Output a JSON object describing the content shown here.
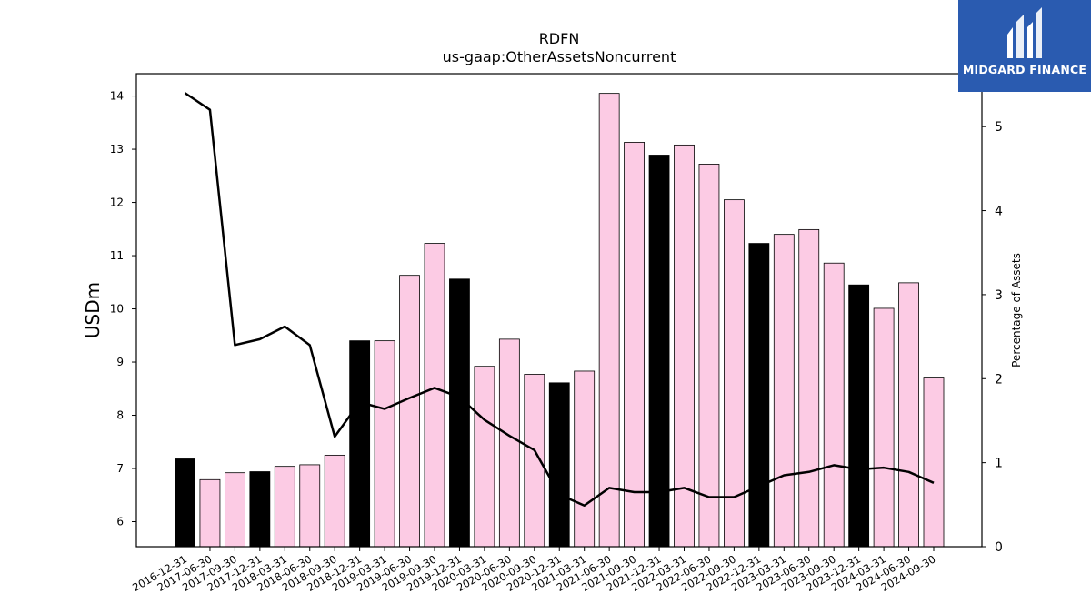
{
  "brand": {
    "name": "MIDGARD FINANCE",
    "color": "#2a5bb0"
  },
  "chart_data": {
    "type": "bar",
    "title": "RDFN",
    "subtitle": "us-gaap:OtherAssetsNoncurrent",
    "ylabel": "USDm",
    "y2label": "Percentage of Assets",
    "ylim": [
      5.53,
      14.42
    ],
    "y2lim": [
      0,
      5.63
    ],
    "yticks": [
      6,
      7,
      8,
      9,
      10,
      11,
      12,
      13,
      14
    ],
    "y2ticks": [
      0,
      1,
      2,
      3,
      4,
      5
    ],
    "categories": [
      "2016-12-31",
      "2017-06-30",
      "2017-09-30",
      "2017-12-31",
      "2018-03-31",
      "2018-06-30",
      "2018-09-30",
      "2018-12-31",
      "2019-03-31",
      "2019-06-30",
      "2019-09-30",
      "2019-12-31",
      "2020-03-31",
      "2020-06-30",
      "2020-09-30",
      "2020-12-31",
      "2021-03-31",
      "2021-06-30",
      "2021-09-30",
      "2021-12-31",
      "2022-03-31",
      "2022-06-30",
      "2022-09-30",
      "2022-12-31",
      "2023-03-31",
      "2023-06-30",
      "2023-09-30",
      "2023-12-31",
      "2024-03-31",
      "2024-06-30",
      "2024-09-30"
    ],
    "series": [
      {
        "kind": "bar",
        "axis": "left",
        "values": [
          7.18,
          6.79,
          6.92,
          6.94,
          7.04,
          7.07,
          7.25,
          9.4,
          9.4,
          10.63,
          11.23,
          10.56,
          8.92,
          9.43,
          8.77,
          8.61,
          8.83,
          14.05,
          13.13,
          12.89,
          13.08,
          12.72,
          12.05,
          11.23,
          11.4,
          11.49,
          10.86,
          10.45,
          10.01,
          10.49,
          8.7
        ]
      },
      {
        "kind": "line",
        "axis": "right",
        "values": [
          5.4,
          5.2,
          2.4,
          2.47,
          2.62,
          2.4,
          1.31,
          1.72,
          1.64,
          1.77,
          1.89,
          1.78,
          1.51,
          1.32,
          1.15,
          0.62,
          0.49,
          0.7,
          0.65,
          0.65,
          0.7,
          0.59,
          0.59,
          0.72,
          0.85,
          0.89,
          0.97,
          0.92,
          0.94,
          0.89,
          0.76
        ]
      }
    ],
    "colors": {
      "bar_highlight": "#000000",
      "bar_default": "#fccbe4",
      "line": "#000000"
    },
    "highlight_categories": [
      "2016-12-31",
      "2017-12-31",
      "2018-12-31",
      "2019-12-31",
      "2020-12-31",
      "2021-12-31",
      "2022-12-31",
      "2023-12-31"
    ],
    "legend": "none",
    "grid": false
  }
}
